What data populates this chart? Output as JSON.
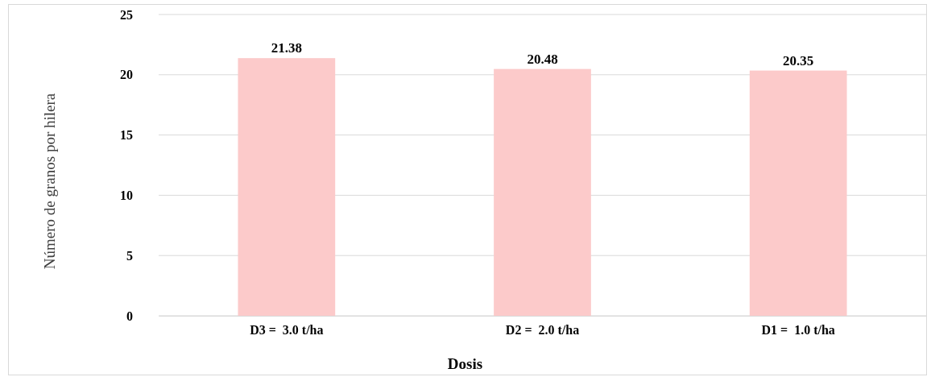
{
  "chart_data": {
    "type": "bar",
    "xlabel": "Dosis",
    "ylabel": "Número de granos por hilera",
    "categories": [
      "D3 =  3.0 t/ha",
      "D2 =  2.0 t/ha",
      "D1 =  1.0 t/ha"
    ],
    "values": [
      21.38,
      20.48,
      20.35
    ],
    "color": "#fccaca",
    "ylim": [
      0,
      25
    ],
    "yticks": [
      0,
      5,
      10,
      15,
      20,
      25
    ],
    "grid": "y",
    "data_labels": true
  }
}
